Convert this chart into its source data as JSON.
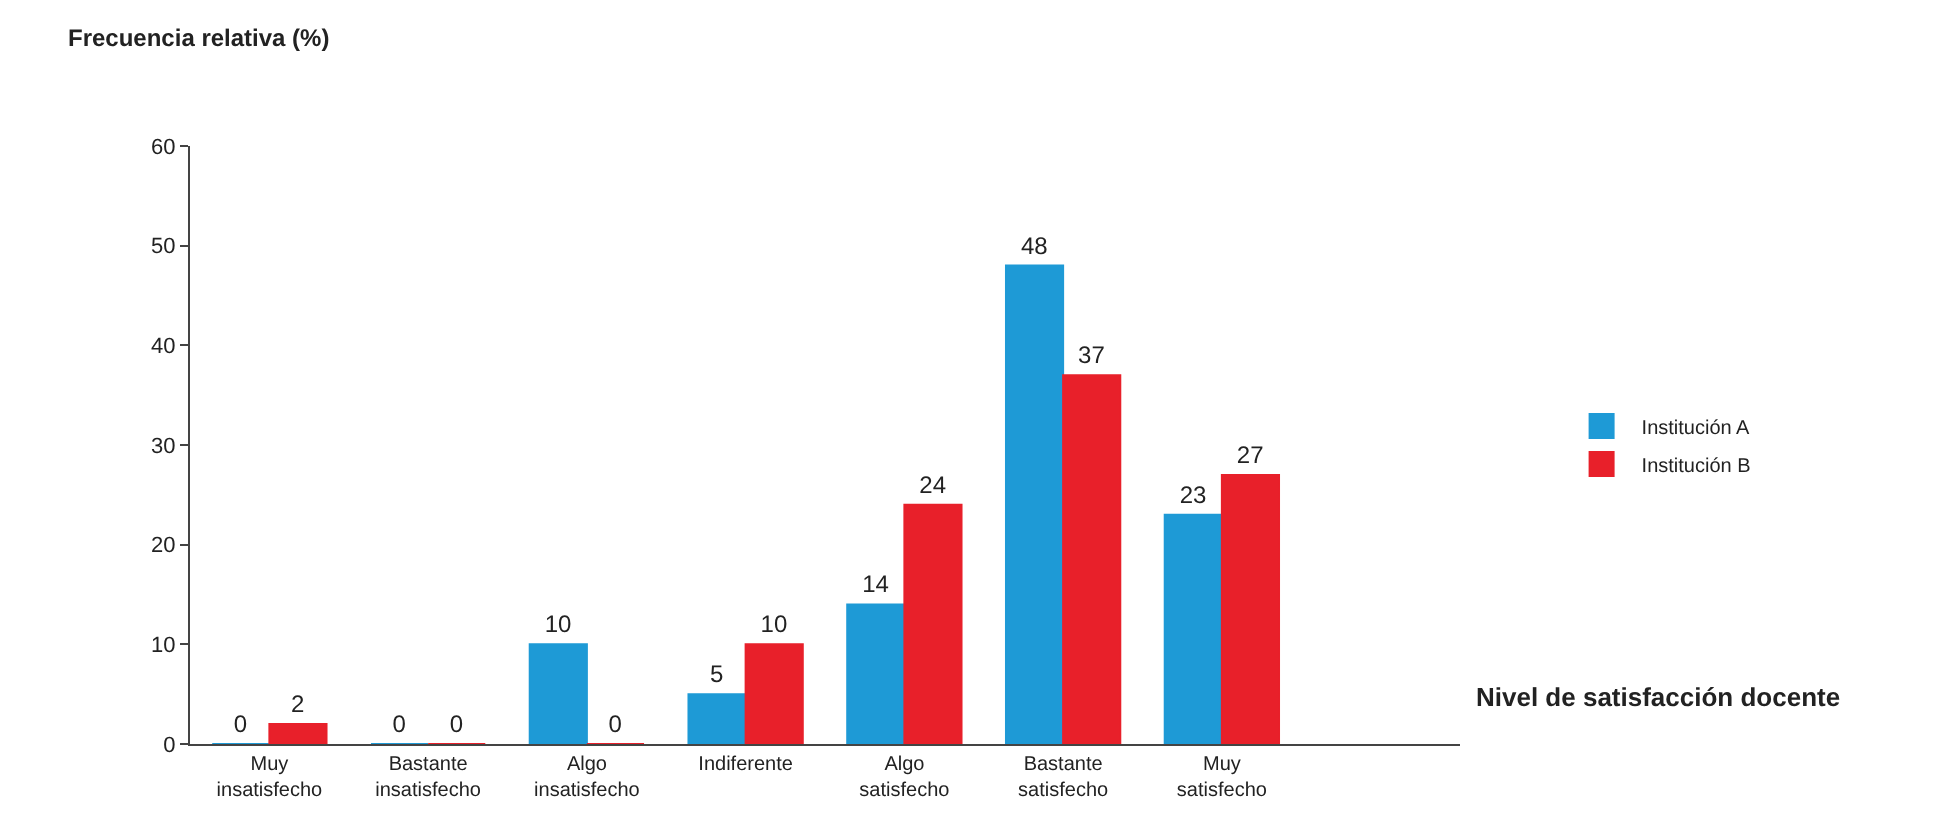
{
  "chart_data": {
    "type": "bar",
    "ylabel": "Frecuencia relativa (%)",
    "xlabel": "Nivel de satisfacción docente",
    "categories": [
      "Muy insatisfecho",
      "Bastante insatisfecho",
      "Algo insatisfecho",
      "Indiferente",
      "Algo satisfecho",
      "Bastante satisfecho",
      "Muy satisfecho",
      null
    ],
    "series": [
      {
        "name": "Institución A",
        "color": "#1e9ad6",
        "values": [
          0,
          0,
          10,
          5,
          14,
          48,
          23,
          null
        ]
      },
      {
        "name": "Institución B",
        "color": "#e8202a",
        "values": [
          2,
          0,
          0,
          10,
          24,
          37,
          27,
          null
        ]
      }
    ],
    "ylim": [
      0,
      60
    ],
    "yticks": [
      0,
      10,
      20,
      30,
      40,
      50,
      60
    ],
    "legend": "right",
    "data_labels": true
  }
}
